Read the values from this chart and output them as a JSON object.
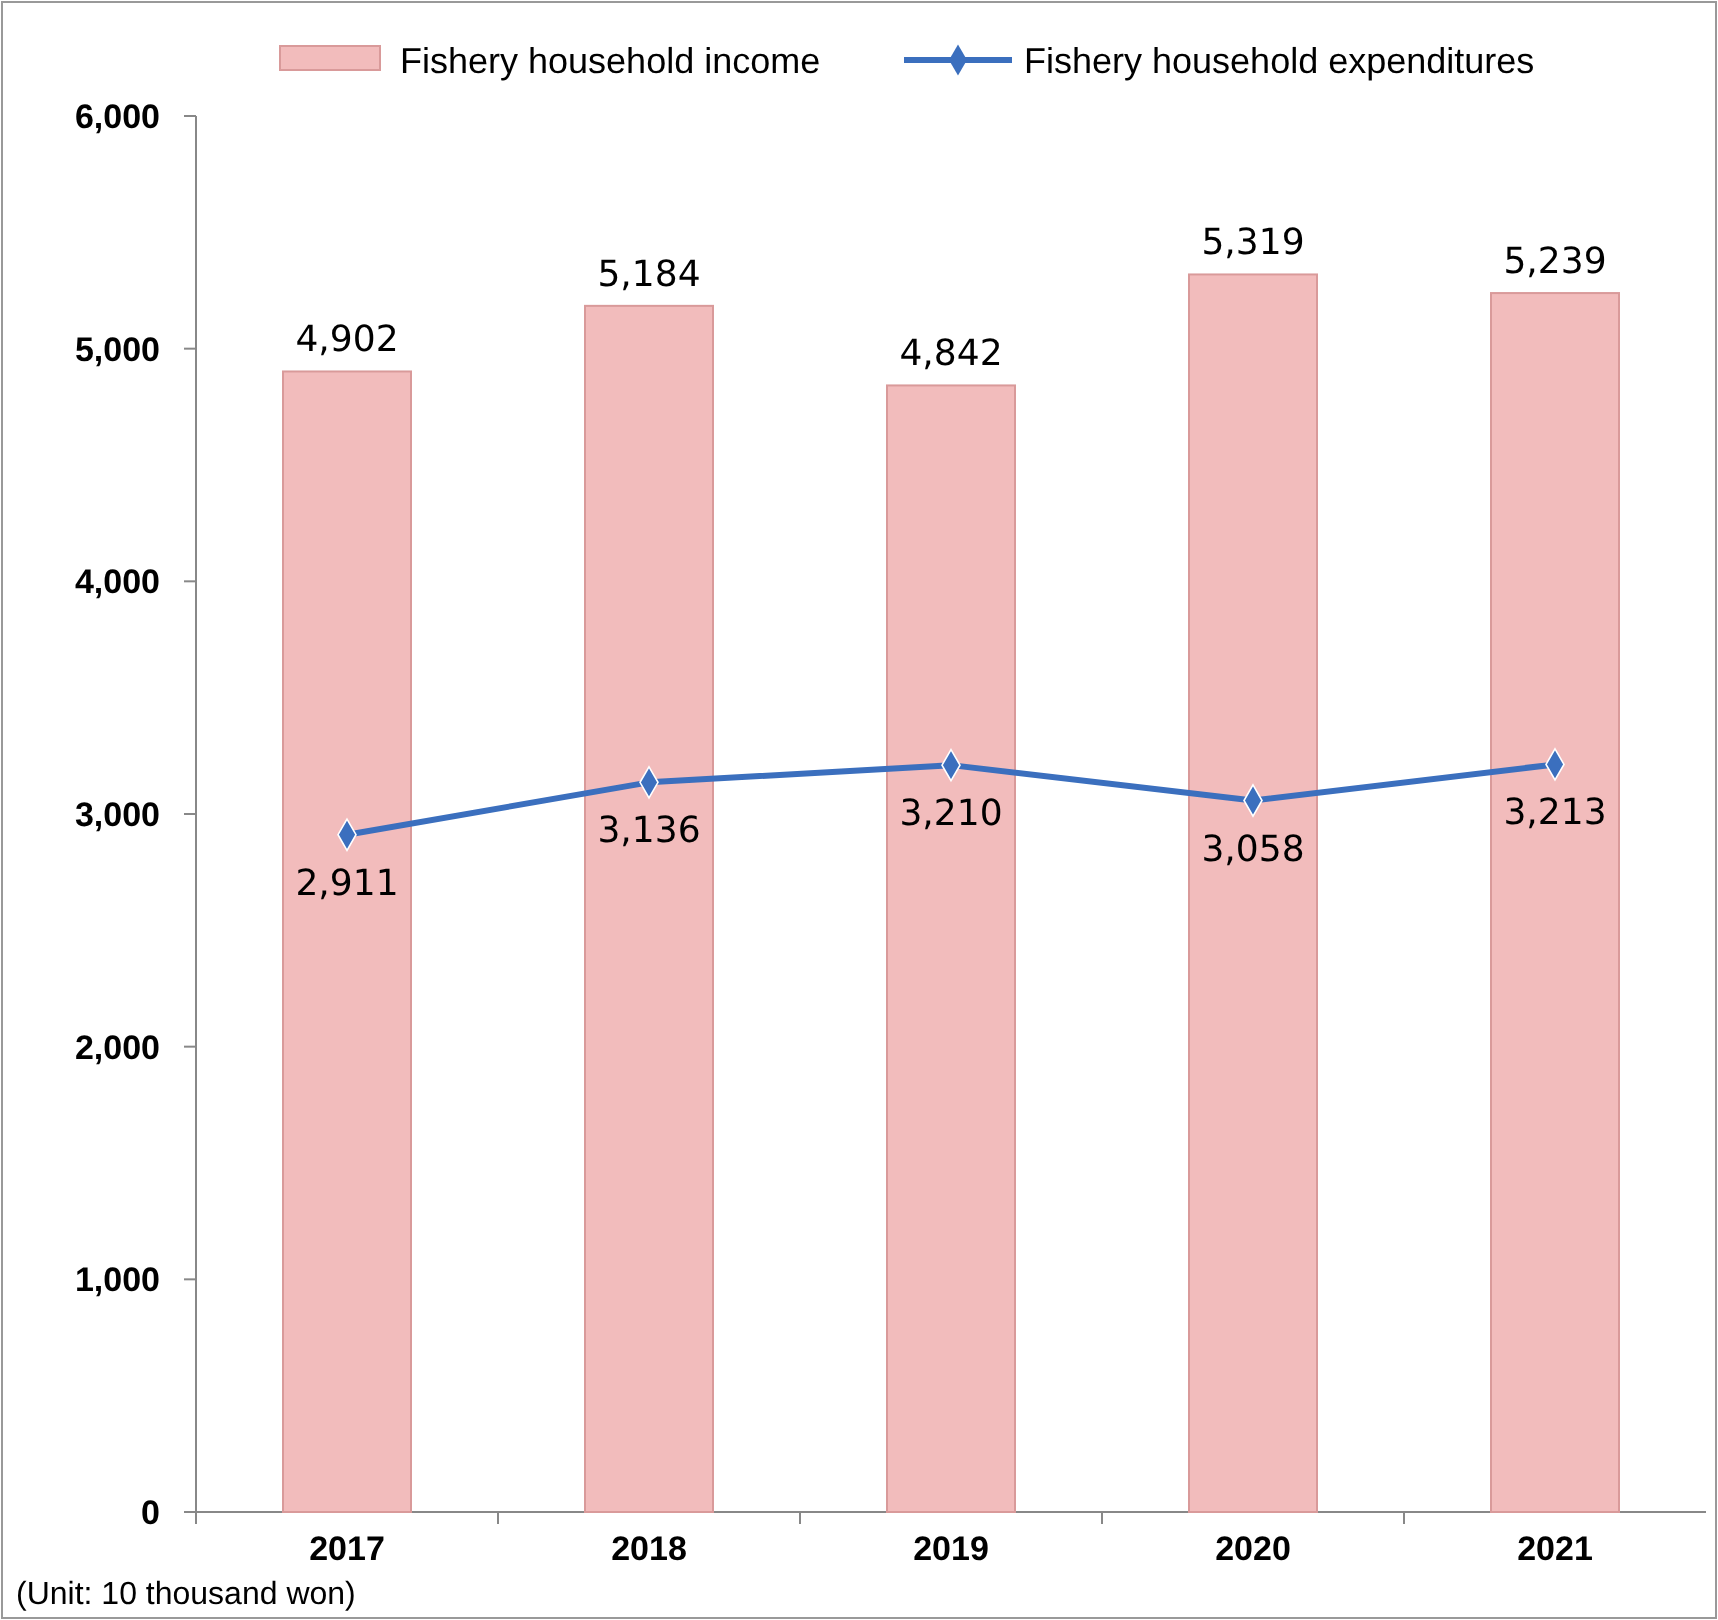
{
  "chart_data": {
    "type": "bar",
    "categories": [
      "2017",
      "2018",
      "2019",
      "2020",
      "2021"
    ],
    "series": [
      {
        "name": "Fishery household income",
        "color": "#f2bcbc",
        "values": [
          4902,
          5184,
          4842,
          5319,
          5239
        ],
        "value_labels": [
          "4,902",
          "5,184",
          "4,842",
          "5,319",
          "5,239"
        ]
      },
      {
        "name": "Fishery household expenditures",
        "type": "line",
        "color": "#3b6fbe",
        "values": [
          2911,
          3136,
          3210,
          3058,
          3213
        ],
        "value_labels": [
          "2,911",
          "3,136",
          "3,210",
          "3,058",
          "3,213"
        ]
      }
    ],
    "ylim": [
      0,
      6000
    ],
    "yticks": [
      {
        "value": 0,
        "label": "0"
      },
      {
        "value": 1000,
        "label": "1,000"
      },
      {
        "value": 2000,
        "label": "2,000"
      },
      {
        "value": 3000,
        "label": "3,000"
      },
      {
        "value": 4000,
        "label": "4,000"
      },
      {
        "value": 5000,
        "label": "5,000"
      },
      {
        "value": 6000,
        "label": "6,000"
      }
    ],
    "legend": "top",
    "marker": "diamond",
    "grid": false,
    "annotations": [
      "(Unit: 10 thousand won)"
    ]
  }
}
